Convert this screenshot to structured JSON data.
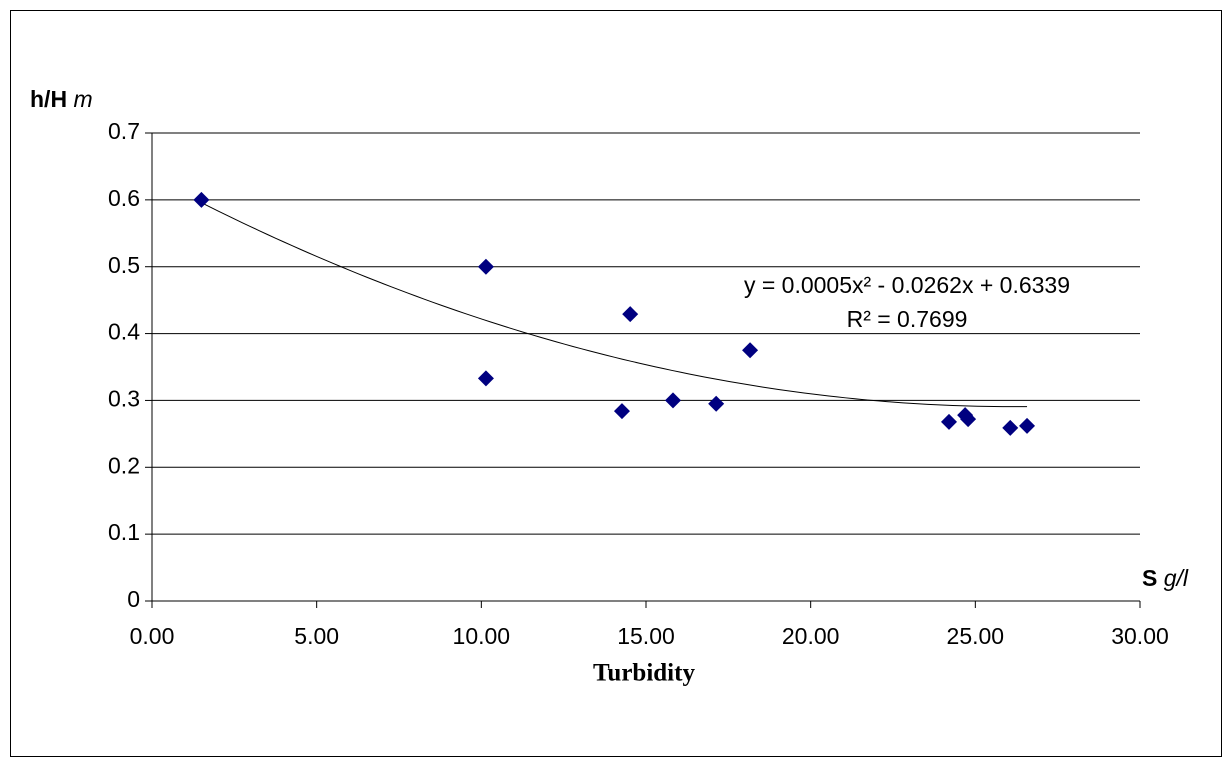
{
  "chart_data": {
    "type": "scatter",
    "y_label": "h/H",
    "y_unit": "m",
    "x_label": "S",
    "x_unit": "g/l",
    "x_title": "Turbidity",
    "x": [
      1.5,
      10.14,
      10.14,
      14.52,
      14.27,
      15.82,
      17.13,
      18.16,
      24.2,
      24.69,
      24.78,
      26.06,
      26.57
    ],
    "values": [
      0.6,
      0.5,
      0.333,
      0.429,
      0.284,
      0.3,
      0.295,
      0.375,
      0.268,
      0.278,
      0.272,
      0.259,
      0.262
    ],
    "color": "#000080",
    "xlim": [
      0,
      30
    ],
    "ylim": [
      0,
      0.7
    ],
    "xticks": [
      {
        "value": 0,
        "label": "0.00"
      },
      {
        "value": 5,
        "label": "5.00"
      },
      {
        "value": 10,
        "label": "10.00"
      },
      {
        "value": 15,
        "label": "15.00"
      },
      {
        "value": 20,
        "label": "20.00"
      },
      {
        "value": 25,
        "label": "25.00"
      },
      {
        "value": 30,
        "label": "30.00"
      }
    ],
    "yticks": [
      0,
      0.1,
      0.2,
      0.3,
      0.4,
      0.5,
      0.6,
      0.7
    ],
    "grid": true,
    "trendline": {
      "coefficients": [
        0.0005,
        -0.0262,
        0.6339
      ],
      "equation": "y = 0.0005x² - 0.0262x + 0.6339",
      "r_squared": "R² = 0.7699"
    }
  }
}
